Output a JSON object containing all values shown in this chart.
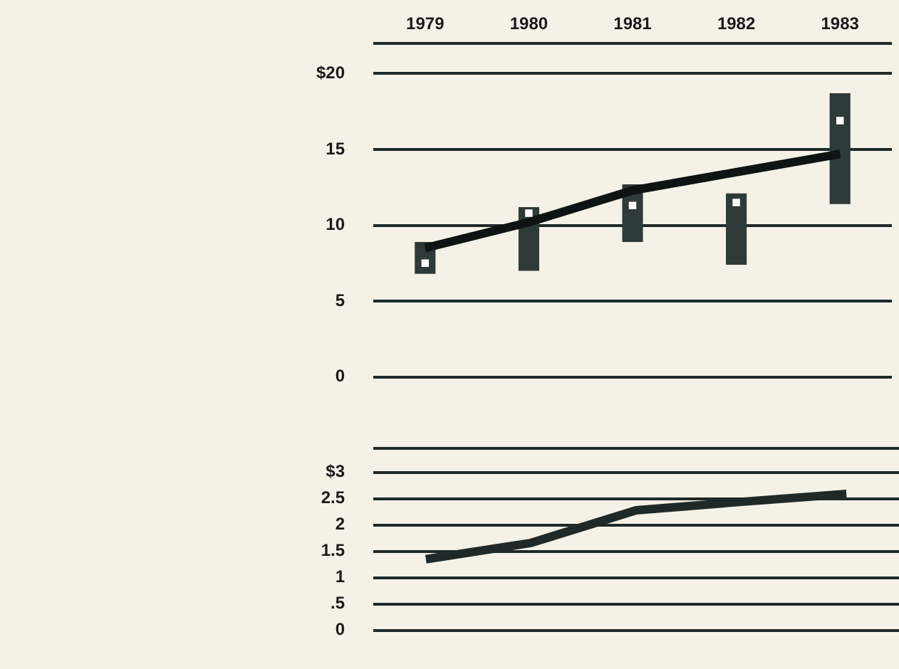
{
  "chart_data": [
    {
      "type": "bar",
      "categories": [
        "1979",
        "1980",
        "1981",
        "1982",
        "1983"
      ],
      "series": [
        {
          "color": "#2e3a37",
          "values": [
            2.1,
            4.2,
            3.8,
            4.7,
            7.3
          ],
          "base": [
            6.8,
            7.0,
            8.9,
            7.4,
            11.4
          ]
        },
        {
          "type": "scatter",
          "color": "#ffffff",
          "marker": "square",
          "values": [
            7.5,
            10.8,
            11.3,
            11.5,
            16.9
          ]
        },
        {
          "type": "line",
          "color": "#0d1413",
          "values": [
            8.5,
            10.2,
            12.3,
            13.5,
            14.7
          ]
        }
      ],
      "ylim": [
        0,
        22
      ],
      "yticks": [
        0,
        5,
        10,
        15,
        {
          "value": 20,
          "label": "$20"
        },
        {
          "value": 22,
          "label": null
        }
      ],
      "grid": "y",
      "legend": false
    },
    {
      "type": "line",
      "categories": [
        "1979",
        "1980",
        "1981",
        "1982",
        "1983"
      ],
      "series": [
        {
          "color": "#1f2a28",
          "values": [
            1.35,
            1.66,
            2.28,
            2.44,
            2.59
          ]
        }
      ],
      "ylim": [
        0,
        3.45
      ],
      "yticks": [
        0,
        {
          "value": 0.5,
          "label": ".5"
        },
        1,
        1.5,
        2,
        2.5,
        {
          "value": 3,
          "label": "$3"
        },
        {
          "value": 3.45,
          "label": null
        }
      ],
      "grid": "y",
      "legend": false,
      "tick_labels": "y"
    }
  ]
}
